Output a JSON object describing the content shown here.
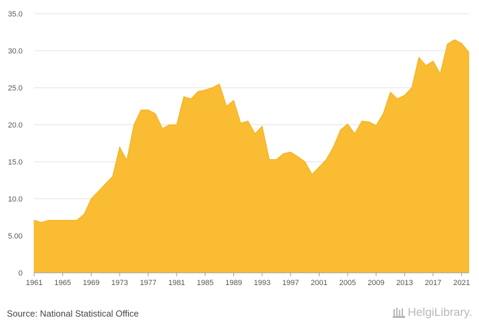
{
  "footer": {
    "source": "Source: National Statistical Office",
    "brand": "HelgiLibrary."
  },
  "colors": {
    "area_fill": "#f9bc32",
    "area_stroke": "#f3b01c",
    "grid": "#e2e2e2",
    "text": "#555555"
  },
  "chart_data": {
    "type": "area",
    "title": "",
    "xlabel": "",
    "ylabel": "",
    "x_tick_labels": [
      "1961",
      "1965",
      "1969",
      "1973",
      "1977",
      "1981",
      "1985",
      "1989",
      "1993",
      "1997",
      "2001",
      "2005",
      "2009",
      "2013",
      "2017",
      "2021"
    ],
    "y_tick_labels": [
      "0",
      "5.00",
      "10.0",
      "15.0",
      "20.0",
      "25.0",
      "30.0",
      "35.0"
    ],
    "ylim": [
      0,
      35
    ],
    "xlim": [
      1961,
      2022
    ],
    "grid": true,
    "legend": "none",
    "x": [
      1961,
      1962,
      1963,
      1964,
      1965,
      1966,
      1967,
      1968,
      1969,
      1970,
      1971,
      1972,
      1973,
      1974,
      1975,
      1976,
      1977,
      1978,
      1979,
      1980,
      1981,
      1982,
      1983,
      1984,
      1985,
      1986,
      1987,
      1988,
      1989,
      1990,
      1991,
      1992,
      1993,
      1994,
      1995,
      1996,
      1997,
      1998,
      1999,
      2000,
      2001,
      2002,
      2003,
      2004,
      2005,
      2006,
      2007,
      2008,
      2009,
      2010,
      2011,
      2012,
      2013,
      2014,
      2015,
      2016,
      2017,
      2018,
      2019,
      2020,
      2021,
      2022
    ],
    "values": [
      7.1,
      6.8,
      7.1,
      7.1,
      7.1,
      7.1,
      7.1,
      7.9,
      10.0,
      11.0,
      12.0,
      13.0,
      17.0,
      15.2,
      20.0,
      22.0,
      22.0,
      21.5,
      19.5,
      20.0,
      20.0,
      23.8,
      23.5,
      24.5,
      24.7,
      25.0,
      25.5,
      22.5,
      23.3,
      20.2,
      20.5,
      18.8,
      19.8,
      15.3,
      15.3,
      16.1,
      16.3,
      15.7,
      15.0,
      13.3,
      14.3,
      15.3,
      17.0,
      19.3,
      20.1,
      18.8,
      20.5,
      20.4,
      19.9,
      21.5,
      24.4,
      23.5,
      24.0,
      25.0,
      29.1,
      28.0,
      28.6,
      26.9,
      30.9,
      31.5,
      31.0,
      29.8
    ]
  }
}
